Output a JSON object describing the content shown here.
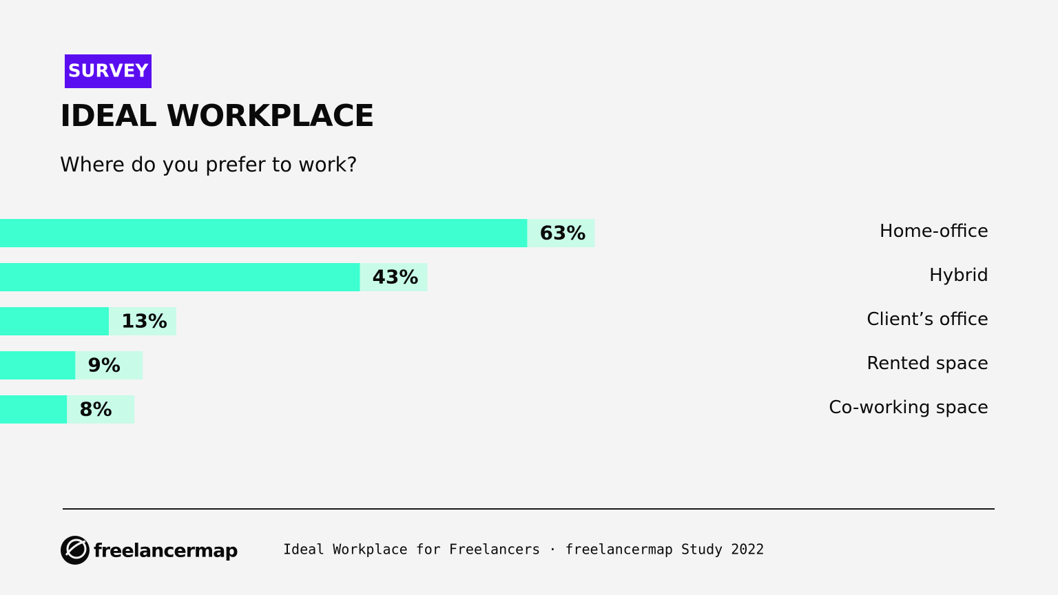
{
  "tag": "SURVEY",
  "chart_data": {
    "type": "bar",
    "orientation": "horizontal",
    "title": "IDEAL WORKPLACE",
    "subtitle": "Where do you prefer to work?",
    "categories": [
      "Home-office",
      "Hybrid",
      "Client’s office",
      "Rented space",
      "Co-working space"
    ],
    "values": [
      63,
      43,
      13,
      9,
      8
    ],
    "value_labels": [
      "63%",
      "43%",
      "13%",
      "9%",
      "8%"
    ],
    "color": "#3dffd0"
  },
  "footer": {
    "logo": "freelancermap",
    "text": "Ideal Workplace for Freelancers · freelancermap Study 2022"
  }
}
